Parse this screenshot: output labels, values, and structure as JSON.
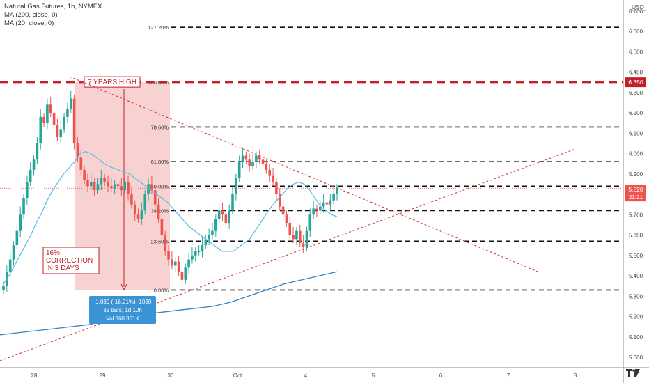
{
  "legend": {
    "symbol": "Natural Gas Futures, 1h, NYMEX",
    "ma200": "MA (200, close, 0)",
    "ma20": "MA (20, close, 0)"
  },
  "currency_label": "USD",
  "chart_data": {
    "type": "candlestick",
    "ylim": [
      4.95,
      6.75
    ],
    "y_ticks": [
      "5.000",
      "5.100",
      "5.200",
      "5.300",
      "5.400",
      "5.500",
      "5.600",
      "5.700",
      "5.800",
      "5.900",
      "6.000",
      "6.100",
      "6.200",
      "6.300",
      "6.400",
      "6.500",
      "6.600",
      "6.700"
    ],
    "x_ticks": [
      "28",
      "29",
      "30",
      "Oct",
      "4",
      "5",
      "6",
      "7",
      "8"
    ],
    "fib_levels": [
      {
        "label": "127.20%",
        "value": 6.62
      },
      {
        "label": "100.00%",
        "value": 6.35
      },
      {
        "label": "78.60%",
        "value": 6.13
      },
      {
        "label": "61.80%",
        "value": 5.96
      },
      {
        "label": "50.00%",
        "value": 5.84
      },
      {
        "label": "38.20%",
        "value": 5.72
      },
      {
        "label": "23.60%",
        "value": 5.57
      },
      {
        "label": "0.00%",
        "value": 5.33
      }
    ],
    "seven_year_high": {
      "label": "7 YEARS HIGH",
      "value": 6.35,
      "price_label": "6.350"
    },
    "last_price": {
      "value": 5.82,
      "price_label": "5.820",
      "countdown": "21:21"
    },
    "annotation_correction": "16% CORRECTION IN 3 DAYS",
    "measure_box": {
      "line1": "-1.030 (-16.21%) -1030",
      "line2": "32 bars, 1d 10h",
      "line3": "Vol 360.361K"
    },
    "candles_close": [
      5.35,
      5.42,
      5.48,
      5.55,
      5.62,
      5.7,
      5.78,
      5.86,
      5.92,
      5.97,
      6.05,
      6.18,
      6.15,
      6.24,
      6.2,
      6.14,
      6.08,
      6.12,
      6.18,
      6.22,
      6.27,
      6.05,
      5.98,
      5.92,
      5.87,
      5.84,
      5.86,
      5.82,
      5.85,
      5.88,
      5.86,
      5.84,
      5.83,
      5.85,
      5.84,
      5.82,
      5.86,
      5.8,
      5.75,
      5.7,
      5.68,
      5.72,
      5.8,
      5.85,
      5.82,
      5.75,
      5.68,
      5.6,
      5.52,
      5.48,
      5.45,
      5.47,
      5.42,
      5.38,
      5.44,
      5.48,
      5.5,
      5.52,
      5.52,
      5.55,
      5.58,
      5.6,
      5.62,
      5.68,
      5.72,
      5.7,
      5.66,
      5.72,
      5.8,
      5.88,
      5.96,
      5.99,
      5.97,
      5.94,
      5.96,
      5.99,
      5.97,
      5.95,
      5.92,
      5.89,
      5.86,
      5.8,
      5.74,
      5.7,
      5.66,
      5.6,
      5.58,
      5.62,
      5.56,
      5.54,
      5.62,
      5.7,
      5.73,
      5.72,
      5.74,
      5.76,
      5.75,
      5.77,
      5.8,
      5.83
    ],
    "ma20": [
      5.36,
      5.4,
      5.45,
      5.5,
      5.55,
      5.6,
      5.66,
      5.71,
      5.77,
      5.82,
      5.86,
      5.9,
      5.93,
      5.96,
      6.0,
      6.01,
      6.0,
      5.98,
      5.96,
      5.94,
      5.93,
      5.92,
      5.91,
      5.9,
      5.88,
      5.86,
      5.84,
      5.82,
      5.8,
      5.78,
      5.76,
      5.73,
      5.7,
      5.67,
      5.64,
      5.62,
      5.6,
      5.58,
      5.56,
      5.54,
      5.52,
      5.52,
      5.52,
      5.54,
      5.56,
      5.58,
      5.62,
      5.66,
      5.7,
      5.74,
      5.77,
      5.8,
      5.83,
      5.85,
      5.86,
      5.85,
      5.82,
      5.78,
      5.74,
      5.72,
      5.7,
      5.69
    ],
    "ma200": [
      5.11,
      5.12,
      5.13,
      5.14,
      5.15,
      5.16,
      5.18,
      5.2,
      5.21,
      5.22,
      5.23,
      5.24,
      5.25,
      5.27,
      5.3,
      5.33,
      5.36,
      5.38,
      5.4,
      5.42
    ]
  }
}
